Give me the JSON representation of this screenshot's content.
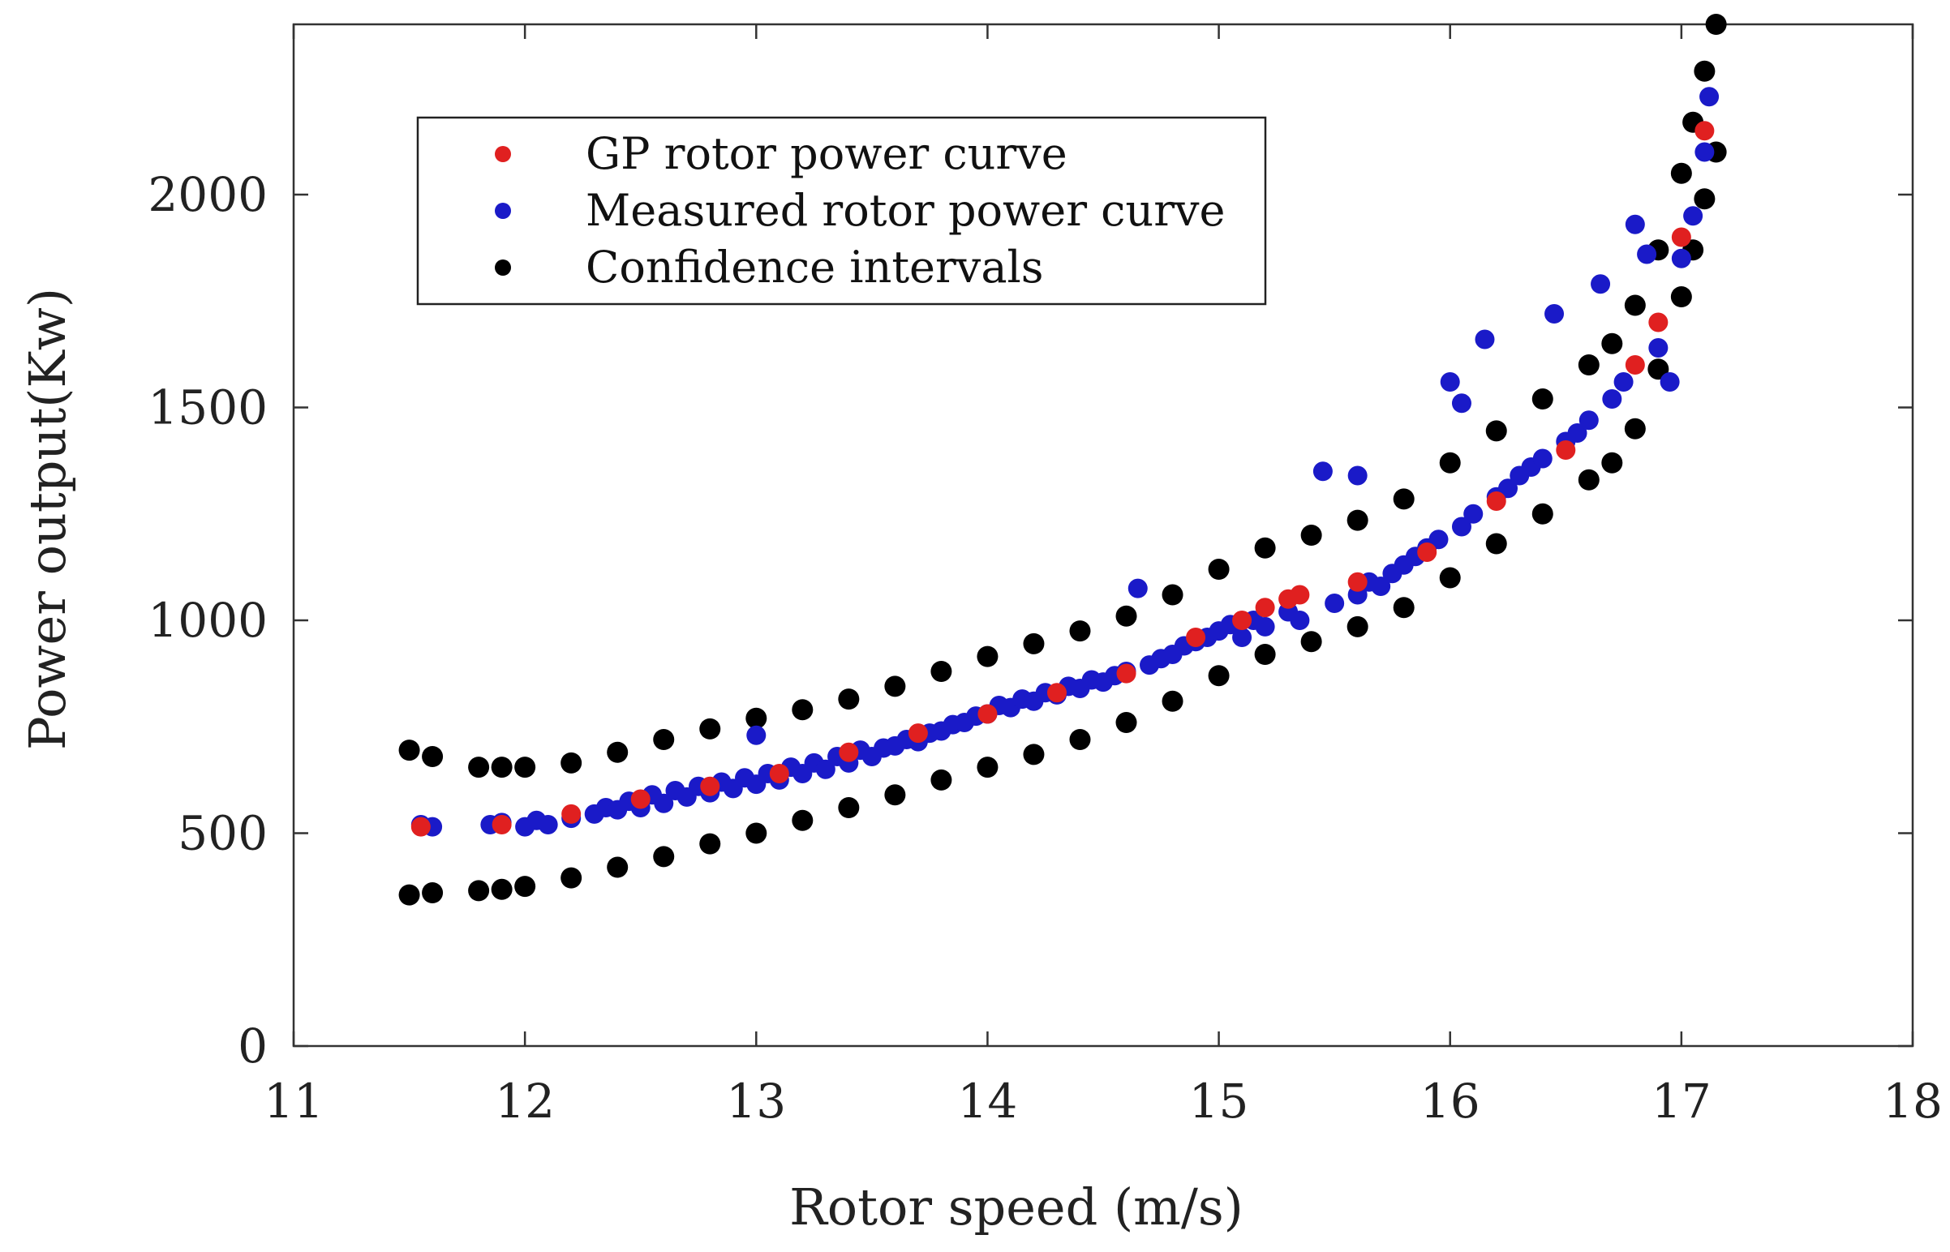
{
  "chart_data": {
    "type": "scatter",
    "title": "",
    "xlabel": "Rotor speed (m/s)",
    "ylabel": "Power output(Kw)",
    "xlim": [
      11,
      18
    ],
    "ylim": [
      0,
      2400
    ],
    "xticks": [
      11,
      12,
      13,
      14,
      15,
      16,
      17,
      18
    ],
    "yticks": [
      0,
      500,
      1000,
      1500,
      2000
    ],
    "grid": false,
    "legend_position": "top-left",
    "series": [
      {
        "name": "Confidence intervals",
        "color": "#000000",
        "points": [
          [
            11.5,
            695
          ],
          [
            11.6,
            680
          ],
          [
            11.8,
            655
          ],
          [
            11.9,
            655
          ],
          [
            12.0,
            655
          ],
          [
            12.2,
            665
          ],
          [
            12.4,
            690
          ],
          [
            12.6,
            720
          ],
          [
            12.8,
            745
          ],
          [
            13.0,
            770
          ],
          [
            13.2,
            790
          ],
          [
            13.4,
            815
          ],
          [
            13.6,
            845
          ],
          [
            13.8,
            880
          ],
          [
            14.0,
            915
          ],
          [
            14.2,
            945
          ],
          [
            14.4,
            975
          ],
          [
            14.6,
            1010
          ],
          [
            14.8,
            1060
          ],
          [
            15.0,
            1120
          ],
          [
            15.2,
            1170
          ],
          [
            15.4,
            1200
          ],
          [
            15.6,
            1235
          ],
          [
            15.8,
            1285
          ],
          [
            16.0,
            1370
          ],
          [
            16.2,
            1445
          ],
          [
            16.4,
            1520
          ],
          [
            16.6,
            1600
          ],
          [
            16.7,
            1650
          ],
          [
            16.8,
            1740
          ],
          [
            16.9,
            1870
          ],
          [
            17.0,
            2050
          ],
          [
            17.05,
            2170
          ],
          [
            17.1,
            2290
          ],
          [
            17.15,
            2400
          ],
          [
            11.5,
            355
          ],
          [
            11.6,
            360
          ],
          [
            11.8,
            365
          ],
          [
            11.9,
            368
          ],
          [
            12.0,
            375
          ],
          [
            12.2,
            395
          ],
          [
            12.4,
            420
          ],
          [
            12.6,
            445
          ],
          [
            12.8,
            475
          ],
          [
            13.0,
            500
          ],
          [
            13.2,
            530
          ],
          [
            13.4,
            560
          ],
          [
            13.6,
            590
          ],
          [
            13.8,
            625
          ],
          [
            14.0,
            655
          ],
          [
            14.2,
            685
          ],
          [
            14.4,
            720
          ],
          [
            14.6,
            760
          ],
          [
            14.8,
            810
          ],
          [
            15.0,
            870
          ],
          [
            15.2,
            920
          ],
          [
            15.4,
            950
          ],
          [
            15.6,
            985
          ],
          [
            15.8,
            1030
          ],
          [
            16.0,
            1100
          ],
          [
            16.2,
            1180
          ],
          [
            16.4,
            1250
          ],
          [
            16.6,
            1330
          ],
          [
            16.7,
            1370
          ],
          [
            16.8,
            1450
          ],
          [
            16.9,
            1590
          ],
          [
            17.0,
            1760
          ],
          [
            17.05,
            1870
          ],
          [
            17.1,
            1990
          ],
          [
            17.15,
            2100
          ]
        ]
      },
      {
        "name": "Measured rotor power curve",
        "color": "#1a1ac8",
        "points": [
          [
            11.55,
            520
          ],
          [
            11.6,
            515
          ],
          [
            11.85,
            520
          ],
          [
            11.9,
            525
          ],
          [
            12.0,
            515
          ],
          [
            12.05,
            530
          ],
          [
            12.1,
            520
          ],
          [
            12.2,
            535
          ],
          [
            12.3,
            545
          ],
          [
            12.35,
            560
          ],
          [
            12.4,
            555
          ],
          [
            12.45,
            575
          ],
          [
            12.5,
            560
          ],
          [
            12.55,
            590
          ],
          [
            12.6,
            570
          ],
          [
            12.65,
            600
          ],
          [
            12.7,
            585
          ],
          [
            12.75,
            610
          ],
          [
            12.8,
            595
          ],
          [
            12.85,
            620
          ],
          [
            12.9,
            605
          ],
          [
            12.95,
            630
          ],
          [
            13.0,
            615
          ],
          [
            13.0,
            730
          ],
          [
            13.05,
            640
          ],
          [
            13.1,
            625
          ],
          [
            13.15,
            655
          ],
          [
            13.2,
            640
          ],
          [
            13.25,
            665
          ],
          [
            13.3,
            650
          ],
          [
            13.35,
            680
          ],
          [
            13.4,
            665
          ],
          [
            13.45,
            695
          ],
          [
            13.5,
            680
          ],
          [
            13.55,
            700
          ],
          [
            13.6,
            705
          ],
          [
            13.65,
            720
          ],
          [
            13.7,
            715
          ],
          [
            13.75,
            735
          ],
          [
            13.8,
            740
          ],
          [
            13.85,
            755
          ],
          [
            13.9,
            760
          ],
          [
            13.95,
            775
          ],
          [
            14.0,
            780
          ],
          [
            14.05,
            800
          ],
          [
            14.1,
            795
          ],
          [
            14.15,
            815
          ],
          [
            14.2,
            810
          ],
          [
            14.25,
            830
          ],
          [
            14.3,
            825
          ],
          [
            14.35,
            845
          ],
          [
            14.4,
            840
          ],
          [
            14.45,
            860
          ],
          [
            14.5,
            855
          ],
          [
            14.55,
            870
          ],
          [
            14.6,
            880
          ],
          [
            14.65,
            1075
          ],
          [
            14.7,
            895
          ],
          [
            14.75,
            910
          ],
          [
            14.8,
            920
          ],
          [
            14.85,
            940
          ],
          [
            14.9,
            950
          ],
          [
            14.95,
            960
          ],
          [
            15.0,
            975
          ],
          [
            15.05,
            990
          ],
          [
            15.1,
            960
          ],
          [
            15.15,
            1000
          ],
          [
            15.2,
            985
          ],
          [
            15.3,
            1020
          ],
          [
            15.35,
            1000
          ],
          [
            15.45,
            1350
          ],
          [
            15.5,
            1040
          ],
          [
            15.6,
            1340
          ],
          [
            15.6,
            1060
          ],
          [
            15.65,
            1090
          ],
          [
            15.7,
            1080
          ],
          [
            15.75,
            1110
          ],
          [
            15.8,
            1130
          ],
          [
            15.85,
            1150
          ],
          [
            15.9,
            1170
          ],
          [
            15.95,
            1190
          ],
          [
            16.0,
            1560
          ],
          [
            16.05,
            1510
          ],
          [
            16.05,
            1220
          ],
          [
            16.1,
            1250
          ],
          [
            16.15,
            1660
          ],
          [
            16.2,
            1290
          ],
          [
            16.25,
            1310
          ],
          [
            16.3,
            1340
          ],
          [
            16.35,
            1360
          ],
          [
            16.4,
            1380
          ],
          [
            16.45,
            1720
          ],
          [
            16.5,
            1420
          ],
          [
            16.55,
            1440
          ],
          [
            16.6,
            1470
          ],
          [
            16.65,
            1790
          ],
          [
            16.7,
            1520
          ],
          [
            16.75,
            1560
          ],
          [
            16.8,
            1930
          ],
          [
            16.85,
            1860
          ],
          [
            16.9,
            1640
          ],
          [
            16.95,
            1560
          ],
          [
            17.0,
            1850
          ],
          [
            17.05,
            1950
          ],
          [
            17.1,
            2100
          ],
          [
            17.12,
            2230
          ]
        ]
      },
      {
        "name": "GP rotor power curve",
        "color": "#e02020",
        "points": [
          [
            11.55,
            515
          ],
          [
            11.9,
            520
          ],
          [
            12.2,
            545
          ],
          [
            12.5,
            580
          ],
          [
            12.8,
            610
          ],
          [
            13.1,
            640
          ],
          [
            13.4,
            690
          ],
          [
            13.7,
            735
          ],
          [
            14.0,
            780
          ],
          [
            14.3,
            830
          ],
          [
            14.6,
            875
          ],
          [
            14.9,
            960
          ],
          [
            15.1,
            1000
          ],
          [
            15.2,
            1030
          ],
          [
            15.3,
            1050
          ],
          [
            15.35,
            1060
          ],
          [
            15.6,
            1090
          ],
          [
            15.9,
            1160
          ],
          [
            16.2,
            1280
          ],
          [
            16.5,
            1400
          ],
          [
            16.8,
            1600
          ],
          [
            16.9,
            1700
          ],
          [
            17.0,
            1900
          ],
          [
            17.1,
            2150
          ]
        ]
      }
    ],
    "legend": [
      {
        "label": "GP rotor power curve",
        "color": "#e02020"
      },
      {
        "label": "Measured rotor power curve",
        "color": "#1a1ac8"
      },
      {
        "label": "Confidence intervals",
        "color": "#000000"
      }
    ]
  }
}
